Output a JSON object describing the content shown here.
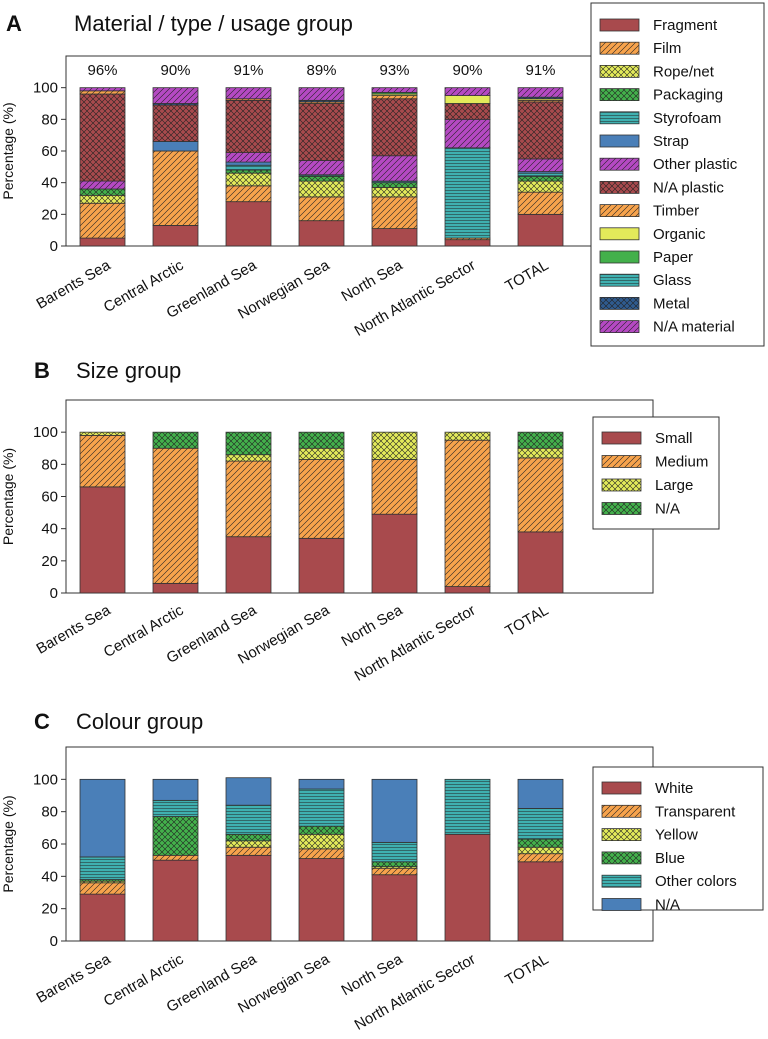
{
  "categories": [
    "Barents Sea",
    "Central Arctic",
    "Greenland Sea",
    "Norwegian Sea",
    "North Sea",
    "North Atlantic Sector",
    "TOTAL"
  ],
  "y_axis_label": "Percentage (%)",
  "y_ticks": [
    "0",
    "20",
    "40",
    "60",
    "80",
    "100"
  ],
  "chart_data": [
    {
      "type": "bar",
      "stacked": true,
      "panel_letter": "A",
      "title": "Material / type / usage group",
      "ylabel": "Percentage (%)",
      "ylim": [
        0,
        120
      ],
      "legend_position": "top-right",
      "top_labels": [
        "96%",
        "90%",
        "91%",
        "89%",
        "93%",
        "90%",
        "91%"
      ],
      "categories": [
        "Barents Sea",
        "Central Arctic",
        "Greenland Sea",
        "Norwegian Sea",
        "North Sea",
        "North Atlantic Sector",
        "TOTAL"
      ],
      "series": [
        {
          "name": "Fragment",
          "color": "#a84a4d",
          "pattern": "solid",
          "values": [
            5,
            13,
            28,
            16,
            11,
            4,
            20
          ]
        },
        {
          "name": "Film",
          "color": "#f7a34c",
          "pattern": "diag",
          "values": [
            22,
            47,
            10,
            15,
            20,
            1,
            14
          ]
        },
        {
          "name": "Rope/net",
          "color": "#e3ea5a",
          "pattern": "cross",
          "values": [
            5,
            0,
            8,
            10,
            6,
            0,
            7
          ]
        },
        {
          "name": "Packaging",
          "color": "#43b04b",
          "pattern": "cross",
          "values": [
            4,
            0,
            2,
            3,
            3,
            0,
            3
          ]
        },
        {
          "name": "Styrofoam",
          "color": "#3fb0b0",
          "pattern": "horiz",
          "values": [
            0,
            0,
            3,
            1,
            1,
            57,
            2
          ]
        },
        {
          "name": "Strap",
          "color": "#4a7fb8",
          "pattern": "solid",
          "values": [
            0,
            6,
            2,
            0,
            0,
            0,
            1
          ]
        },
        {
          "name": "Other plastic",
          "color": "#b549c3",
          "pattern": "diag",
          "values": [
            5,
            0,
            6,
            9,
            16,
            18,
            8
          ]
        },
        {
          "name": "N/A plastic",
          "color": "#a84a4d",
          "pattern": "cross",
          "values": [
            55,
            23,
            33,
            36,
            36,
            10,
            36
          ]
        },
        {
          "name": "Timber",
          "color": "#f7a34c",
          "pattern": "diag",
          "values": [
            2,
            0,
            1,
            1,
            2,
            0,
            1
          ]
        },
        {
          "name": "Organic",
          "color": "#e3ea5a",
          "pattern": "solid",
          "values": [
            0,
            0,
            0,
            0,
            1,
            5,
            1
          ]
        },
        {
          "name": "Paper",
          "color": "#43b04b",
          "pattern": "solid",
          "values": [
            0,
            0,
            0,
            0,
            1,
            0,
            0
          ]
        },
        {
          "name": "Glass",
          "color": "#3fb0b0",
          "pattern": "horiz",
          "values": [
            0,
            0,
            0,
            0,
            0,
            0,
            0
          ]
        },
        {
          "name": "Metal",
          "color": "#2f5b8f",
          "pattern": "cross",
          "values": [
            0,
            1,
            0,
            1,
            0,
            0,
            1
          ]
        },
        {
          "name": "N/A material",
          "color": "#b549c3",
          "pattern": "diag",
          "values": [
            2,
            10,
            7,
            8,
            3,
            5,
            6
          ]
        }
      ]
    },
    {
      "type": "bar",
      "stacked": true,
      "panel_letter": "B",
      "title": "Size group",
      "ylabel": "Percentage (%)",
      "ylim": [
        0,
        120
      ],
      "legend_position": "top-right",
      "categories": [
        "Barents Sea",
        "Central Arctic",
        "Greenland Sea",
        "Norwegian Sea",
        "North Sea",
        "North Atlantic Sector",
        "TOTAL"
      ],
      "series": [
        {
          "name": "Small",
          "color": "#a84a4d",
          "pattern": "solid",
          "values": [
            66,
            6,
            35,
            34,
            49,
            4,
            38
          ]
        },
        {
          "name": "Medium",
          "color": "#f7a34c",
          "pattern": "diag",
          "values": [
            32,
            84,
            47,
            49,
            34,
            91,
            46
          ]
        },
        {
          "name": "Large",
          "color": "#e3ea5a",
          "pattern": "cross",
          "values": [
            2,
            0,
            4,
            7,
            17,
            5,
            6
          ]
        },
        {
          "name": "N/A",
          "color": "#43b04b",
          "pattern": "cross",
          "values": [
            0,
            10,
            14,
            10,
            0,
            0,
            10
          ]
        }
      ]
    },
    {
      "type": "bar",
      "stacked": true,
      "panel_letter": "C",
      "title": "Colour group",
      "ylabel": "Percentage (%)",
      "ylim": [
        0,
        120
      ],
      "legend_position": "right",
      "categories": [
        "Barents Sea",
        "Central Arctic",
        "Greenland Sea",
        "Norwegian Sea",
        "North Sea",
        "North Atlantic Sector",
        "TOTAL"
      ],
      "series": [
        {
          "name": "White",
          "color": "#a84a4d",
          "pattern": "solid",
          "values": [
            29,
            50,
            53,
            51,
            41,
            66,
            49
          ]
        },
        {
          "name": "Transparent",
          "color": "#f7a34c",
          "pattern": "diag",
          "values": [
            7,
            3,
            5,
            6,
            4,
            0,
            5
          ]
        },
        {
          "name": "Yellow",
          "color": "#e3ea5a",
          "pattern": "cross",
          "values": [
            1,
            0,
            4,
            9,
            1,
            0,
            4
          ]
        },
        {
          "name": "Blue",
          "color": "#43b04b",
          "pattern": "cross",
          "values": [
            1,
            24,
            4,
            5,
            3,
            0,
            5
          ]
        },
        {
          "name": "Other colors",
          "color": "#3fb0b0",
          "pattern": "horiz",
          "values": [
            14,
            10,
            18,
            23,
            12,
            34,
            19
          ]
        },
        {
          "name": "N/A",
          "color": "#4a7fb8",
          "pattern": "solid",
          "values": [
            48,
            13,
            17,
            6,
            39,
            0,
            18
          ]
        }
      ]
    }
  ]
}
